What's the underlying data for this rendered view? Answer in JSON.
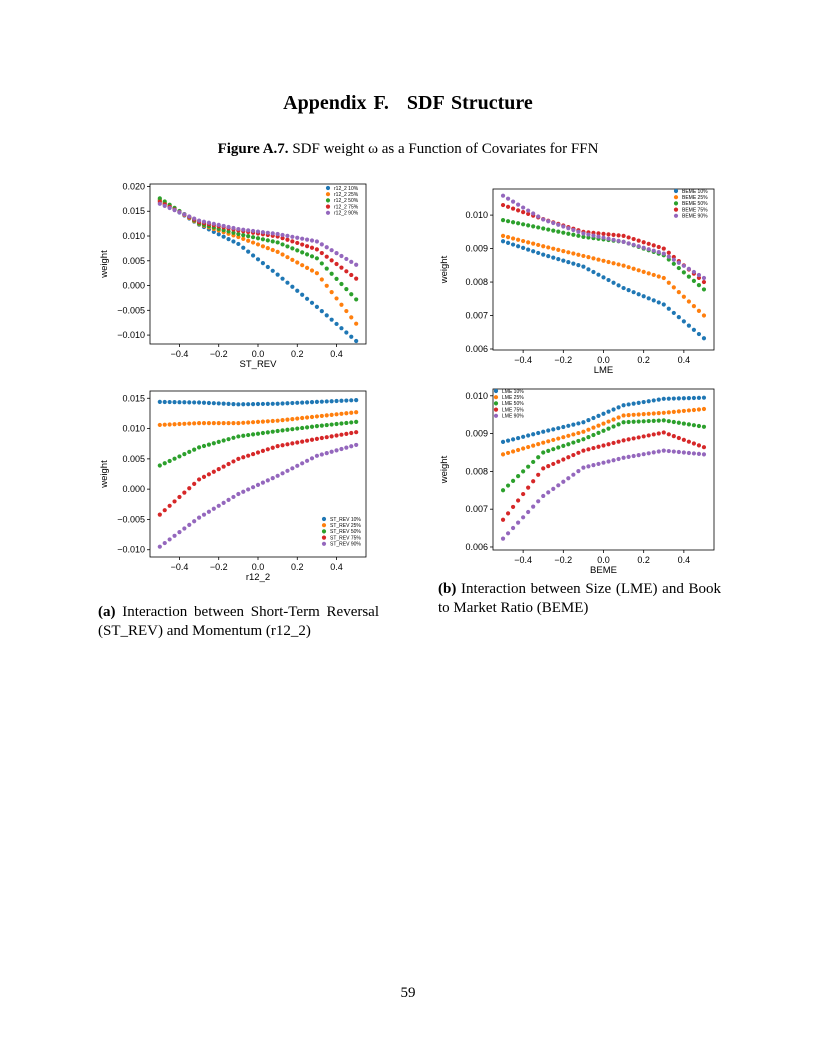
{
  "section_heading": {
    "label": "Appendix F.",
    "title": "SDF Structure"
  },
  "figure": {
    "label": "Figure A.7.",
    "caption": "SDF weight ω as a Function of Covariates for FFN"
  },
  "subcaptions": {
    "a": {
      "label": "(a)",
      "text": "Interaction between Short-Term Reversal (ST_REV) and Momentum (r12_2)"
    },
    "b": {
      "label": "(b)",
      "text": "Interaction between Size (LME) and Book to Market Ratio (BEME)"
    }
  },
  "page_number": "59",
  "colors": [
    "#1f77b4",
    "#ff7f0e",
    "#2ca02c",
    "#d62728",
    "#9467bd"
  ],
  "chart_data": [
    {
      "type": "scatter",
      "xlabel": "ST_REV",
      "ylabel": "weight",
      "xlim": [
        -0.55,
        0.55
      ],
      "ylim": [
        -0.0118,
        0.0205
      ],
      "xticks": [
        -0.4,
        -0.2,
        0.0,
        0.2,
        0.4
      ],
      "xtick_labels": [
        "−0.4",
        "−0.2",
        "0.0",
        "0.2",
        "0.4"
      ],
      "yticks": [
        -0.01,
        -0.005,
        0.0,
        0.005,
        0.01,
        0.015,
        0.02
      ],
      "ytick_labels": [
        "−0.010",
        "−0.005",
        "0.000",
        "0.005",
        "0.010",
        "0.015",
        "0.020"
      ],
      "legend": "top-right",
      "x_range": [
        -0.5,
        0.5
      ],
      "n_points": 41,
      "series": [
        {
          "name": "r12_2 10%",
          "anchors": [
            [
              -0.5,
              0.0172
            ],
            [
              -0.3,
              0.0123
            ],
            [
              -0.1,
              0.0084
            ],
            [
              0.1,
              0.0022
            ],
            [
              0.3,
              -0.0043
            ],
            [
              0.5,
              -0.0112
            ]
          ]
        },
        {
          "name": "r12_2 25%",
          "anchors": [
            [
              -0.5,
              0.0173
            ],
            [
              -0.3,
              0.0124
            ],
            [
              -0.1,
              0.0098
            ],
            [
              0.1,
              0.0068
            ],
            [
              0.3,
              0.0025
            ],
            [
              0.5,
              -0.0077
            ]
          ]
        },
        {
          "name": "r12_2 50%",
          "anchors": [
            [
              -0.5,
              0.0176
            ],
            [
              -0.3,
              0.0125
            ],
            [
              -0.1,
              0.0104
            ],
            [
              0.1,
              0.0087
            ],
            [
              0.3,
              0.0055
            ],
            [
              0.5,
              -0.0028
            ]
          ]
        },
        {
          "name": "r12_2 75%",
          "anchors": [
            [
              -0.5,
              0.0169
            ],
            [
              -0.3,
              0.0128
            ],
            [
              -0.1,
              0.0111
            ],
            [
              0.1,
              0.0099
            ],
            [
              0.3,
              0.0073
            ],
            [
              0.5,
              0.0014
            ]
          ]
        },
        {
          "name": "r12_2 90%",
          "anchors": [
            [
              -0.5,
              0.0165
            ],
            [
              -0.3,
              0.0131
            ],
            [
              -0.1,
              0.0114
            ],
            [
              0.1,
              0.0104
            ],
            [
              0.3,
              0.0089
            ],
            [
              0.5,
              0.0042
            ]
          ]
        }
      ]
    },
    {
      "type": "scatter",
      "xlabel": "LME",
      "ylabel": "weight",
      "xlim": [
        -0.55,
        0.55
      ],
      "ylim": [
        0.00597,
        0.01078
      ],
      "xticks": [
        -0.4,
        -0.2,
        0.0,
        0.2,
        0.4
      ],
      "xtick_labels": [
        "−0.4",
        "−0.2",
        "0.0",
        "0.2",
        "0.4"
      ],
      "yticks": [
        0.006,
        0.007,
        0.008,
        0.009,
        0.01
      ],
      "ytick_labels": [
        "0.006",
        "0.007",
        "0.008",
        "0.009",
        "0.010"
      ],
      "legend": "top-right",
      "x_range": [
        -0.5,
        0.5
      ],
      "n_points": 41,
      "series": [
        {
          "name": "BEME 10%",
          "anchors": [
            [
              -0.5,
              0.00922
            ],
            [
              -0.3,
              0.00882
            ],
            [
              -0.1,
              0.00846
            ],
            [
              0.1,
              0.00782
            ],
            [
              0.3,
              0.00733
            ],
            [
              0.5,
              0.00632
            ]
          ]
        },
        {
          "name": "BEME 25%",
          "anchors": [
            [
              -0.5,
              0.00938
            ],
            [
              -0.3,
              0.00907
            ],
            [
              -0.1,
              0.00878
            ],
            [
              0.1,
              0.00849
            ],
            [
              0.3,
              0.00812
            ],
            [
              0.5,
              0.007
            ]
          ]
        },
        {
          "name": "BEME 50%",
          "anchors": [
            [
              -0.5,
              0.00985
            ],
            [
              -0.3,
              0.0096
            ],
            [
              -0.1,
              0.00935
            ],
            [
              0.1,
              0.0092
            ],
            [
              0.3,
              0.0088
            ],
            [
              0.5,
              0.00778
            ]
          ]
        },
        {
          "name": "BEME 75%",
          "anchors": [
            [
              -0.5,
              0.0103
            ],
            [
              -0.3,
              0.00988
            ],
            [
              -0.1,
              0.0095
            ],
            [
              0.1,
              0.00938
            ],
            [
              0.3,
              0.009
            ],
            [
              0.5,
              0.008
            ]
          ]
        },
        {
          "name": "BEME 90%",
          "anchors": [
            [
              -0.5,
              0.01058
            ],
            [
              -0.3,
              0.00987
            ],
            [
              -0.1,
              0.00945
            ],
            [
              0.1,
              0.0092
            ],
            [
              0.3,
              0.00885
            ],
            [
              0.5,
              0.00812
            ]
          ]
        }
      ]
    },
    {
      "type": "scatter",
      "xlabel": "r12_2",
      "ylabel": "weight",
      "xlim": [
        -0.55,
        0.55
      ],
      "ylim": [
        -0.0112,
        0.0162
      ],
      "xticks": [
        -0.4,
        -0.2,
        0.0,
        0.2,
        0.4
      ],
      "xtick_labels": [
        "−0.4",
        "−0.2",
        "0.0",
        "0.2",
        "0.4"
      ],
      "yticks": [
        -0.01,
        -0.005,
        0.0,
        0.005,
        0.01,
        0.015
      ],
      "ytick_labels": [
        "−0.010",
        "−0.005",
        "0.000",
        "0.005",
        "0.010",
        "0.015"
      ],
      "legend": "bottom-right",
      "x_range": [
        -0.5,
        0.5
      ],
      "n_points": 41,
      "series": [
        {
          "name": "ST_REV 10%",
          "anchors": [
            [
              -0.5,
              0.0144
            ],
            [
              -0.3,
              0.0143
            ],
            [
              -0.1,
              0.014
            ],
            [
              0.1,
              0.0141
            ],
            [
              0.3,
              0.0144
            ],
            [
              0.5,
              0.0147
            ]
          ]
        },
        {
          "name": "ST_REV 25%",
          "anchors": [
            [
              -0.5,
              0.0106
            ],
            [
              -0.3,
              0.0109
            ],
            [
              -0.1,
              0.0109
            ],
            [
              0.1,
              0.0113
            ],
            [
              0.3,
              0.012
            ],
            [
              0.5,
              0.0127
            ]
          ]
        },
        {
          "name": "ST_REV 50%",
          "anchors": [
            [
              -0.5,
              0.0039
            ],
            [
              -0.3,
              0.0069
            ],
            [
              -0.1,
              0.0087
            ],
            [
              0.1,
              0.0096
            ],
            [
              0.3,
              0.0104
            ],
            [
              0.5,
              0.0111
            ]
          ]
        },
        {
          "name": "ST_REV 75%",
          "anchors": [
            [
              -0.5,
              -0.0042
            ],
            [
              -0.3,
              0.0016
            ],
            [
              -0.1,
              0.005
            ],
            [
              0.1,
              0.0071
            ],
            [
              0.3,
              0.0083
            ],
            [
              0.5,
              0.0094
            ]
          ]
        },
        {
          "name": "ST_REV 90%",
          "anchors": [
            [
              -0.5,
              -0.0095
            ],
            [
              -0.3,
              -0.0047
            ],
            [
              -0.1,
              -0.0008
            ],
            [
              0.1,
              0.0022
            ],
            [
              0.3,
              0.0055
            ],
            [
              0.5,
              0.0073
            ]
          ]
        }
      ]
    },
    {
      "type": "scatter",
      "xlabel": "BEME",
      "ylabel": "weight",
      "xlim": [
        -0.55,
        0.55
      ],
      "ylim": [
        0.00592,
        0.01018
      ],
      "xticks": [
        -0.4,
        -0.2,
        0.0,
        0.2,
        0.4
      ],
      "xtick_labels": [
        "−0.4",
        "−0.2",
        "0.0",
        "0.2",
        "0.4"
      ],
      "yticks": [
        0.006,
        0.007,
        0.008,
        0.009,
        0.01
      ],
      "ytick_labels": [
        "0.006",
        "0.007",
        "0.008",
        "0.009",
        "0.010"
      ],
      "legend": "top-left",
      "x_range": [
        -0.5,
        0.5
      ],
      "n_points": 41,
      "series": [
        {
          "name": "LME 10%",
          "anchors": [
            [
              -0.5,
              0.00878
            ],
            [
              -0.3,
              0.00905
            ],
            [
              -0.1,
              0.0093
            ],
            [
              0.1,
              0.00975
            ],
            [
              0.3,
              0.00992
            ],
            [
              0.5,
              0.00995
            ]
          ]
        },
        {
          "name": "LME 25%",
          "anchors": [
            [
              -0.5,
              0.00845
            ],
            [
              -0.3,
              0.00876
            ],
            [
              -0.1,
              0.00905
            ],
            [
              0.1,
              0.00948
            ],
            [
              0.3,
              0.00955
            ],
            [
              0.5,
              0.00965
            ]
          ]
        },
        {
          "name": "LME 50%",
          "anchors": [
            [
              -0.5,
              0.0075
            ],
            [
              -0.3,
              0.0085
            ],
            [
              -0.1,
              0.00885
            ],
            [
              0.1,
              0.0093
            ],
            [
              0.3,
              0.00935
            ],
            [
              0.5,
              0.00918
            ]
          ]
        },
        {
          "name": "LME 75%",
          "anchors": [
            [
              -0.5,
              0.00672
            ],
            [
              -0.3,
              0.00808
            ],
            [
              -0.1,
              0.00855
            ],
            [
              0.1,
              0.00882
            ],
            [
              0.3,
              0.00903
            ],
            [
              0.5,
              0.00864
            ]
          ]
        },
        {
          "name": "LME 90%",
          "anchors": [
            [
              -0.5,
              0.00622
            ],
            [
              -0.3,
              0.00735
            ],
            [
              -0.1,
              0.0081
            ],
            [
              0.1,
              0.00836
            ],
            [
              0.3,
              0.00855
            ],
            [
              0.5,
              0.00845
            ]
          ]
        }
      ]
    }
  ]
}
